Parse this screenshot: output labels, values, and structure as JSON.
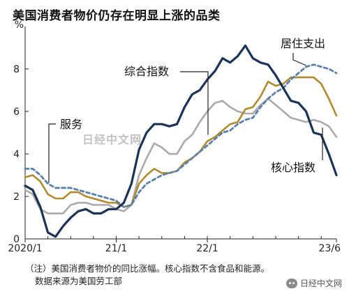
{
  "title": "美国消费者物价仍存在明显上涨的品类",
  "note_lines": [
    "（注）美国消费者物价的同比涨幅。核心指数不含食品和能源。",
    "数据来源为美国劳工部"
  ],
  "watermark": "日经中文网",
  "wechat_label": "日经中文网",
  "chart_data": {
    "type": "line",
    "ylabel": "%",
    "ylim": [
      0,
      9.8
    ],
    "yticks": [
      0,
      2,
      4,
      6,
      8
    ],
    "xlim": [
      0,
      41
    ],
    "xticks": [
      {
        "x": 0,
        "label": "2020/1"
      },
      {
        "x": 12,
        "label": "21/1"
      },
      {
        "x": 24,
        "label": "22/1"
      },
      {
        "x": 41,
        "label": "23/6"
      }
    ],
    "grid": false,
    "series": [
      {
        "name": "综合指数",
        "color": "#aaaaaa",
        "style": "solid",
        "values": [
          2.5,
          2.3,
          1.5,
          0.3,
          0.1,
          0.6,
          1.0,
          1.3,
          1.4,
          1.2,
          1.2,
          1.4,
          1.4,
          1.7,
          2.6,
          4.2,
          5.0,
          5.4,
          5.4,
          5.3,
          5.4,
          6.2,
          6.8,
          7.0,
          7.5,
          7.9,
          8.5,
          8.3,
          8.6,
          9.1,
          8.5,
          8.3,
          8.2,
          7.7,
          7.1,
          6.5,
          6.4,
          6.0,
          5.0,
          4.9,
          4.0,
          3.0
        ],
        "comment": "placeholder-will-be-overwritten"
      }
    ]
  }
}
